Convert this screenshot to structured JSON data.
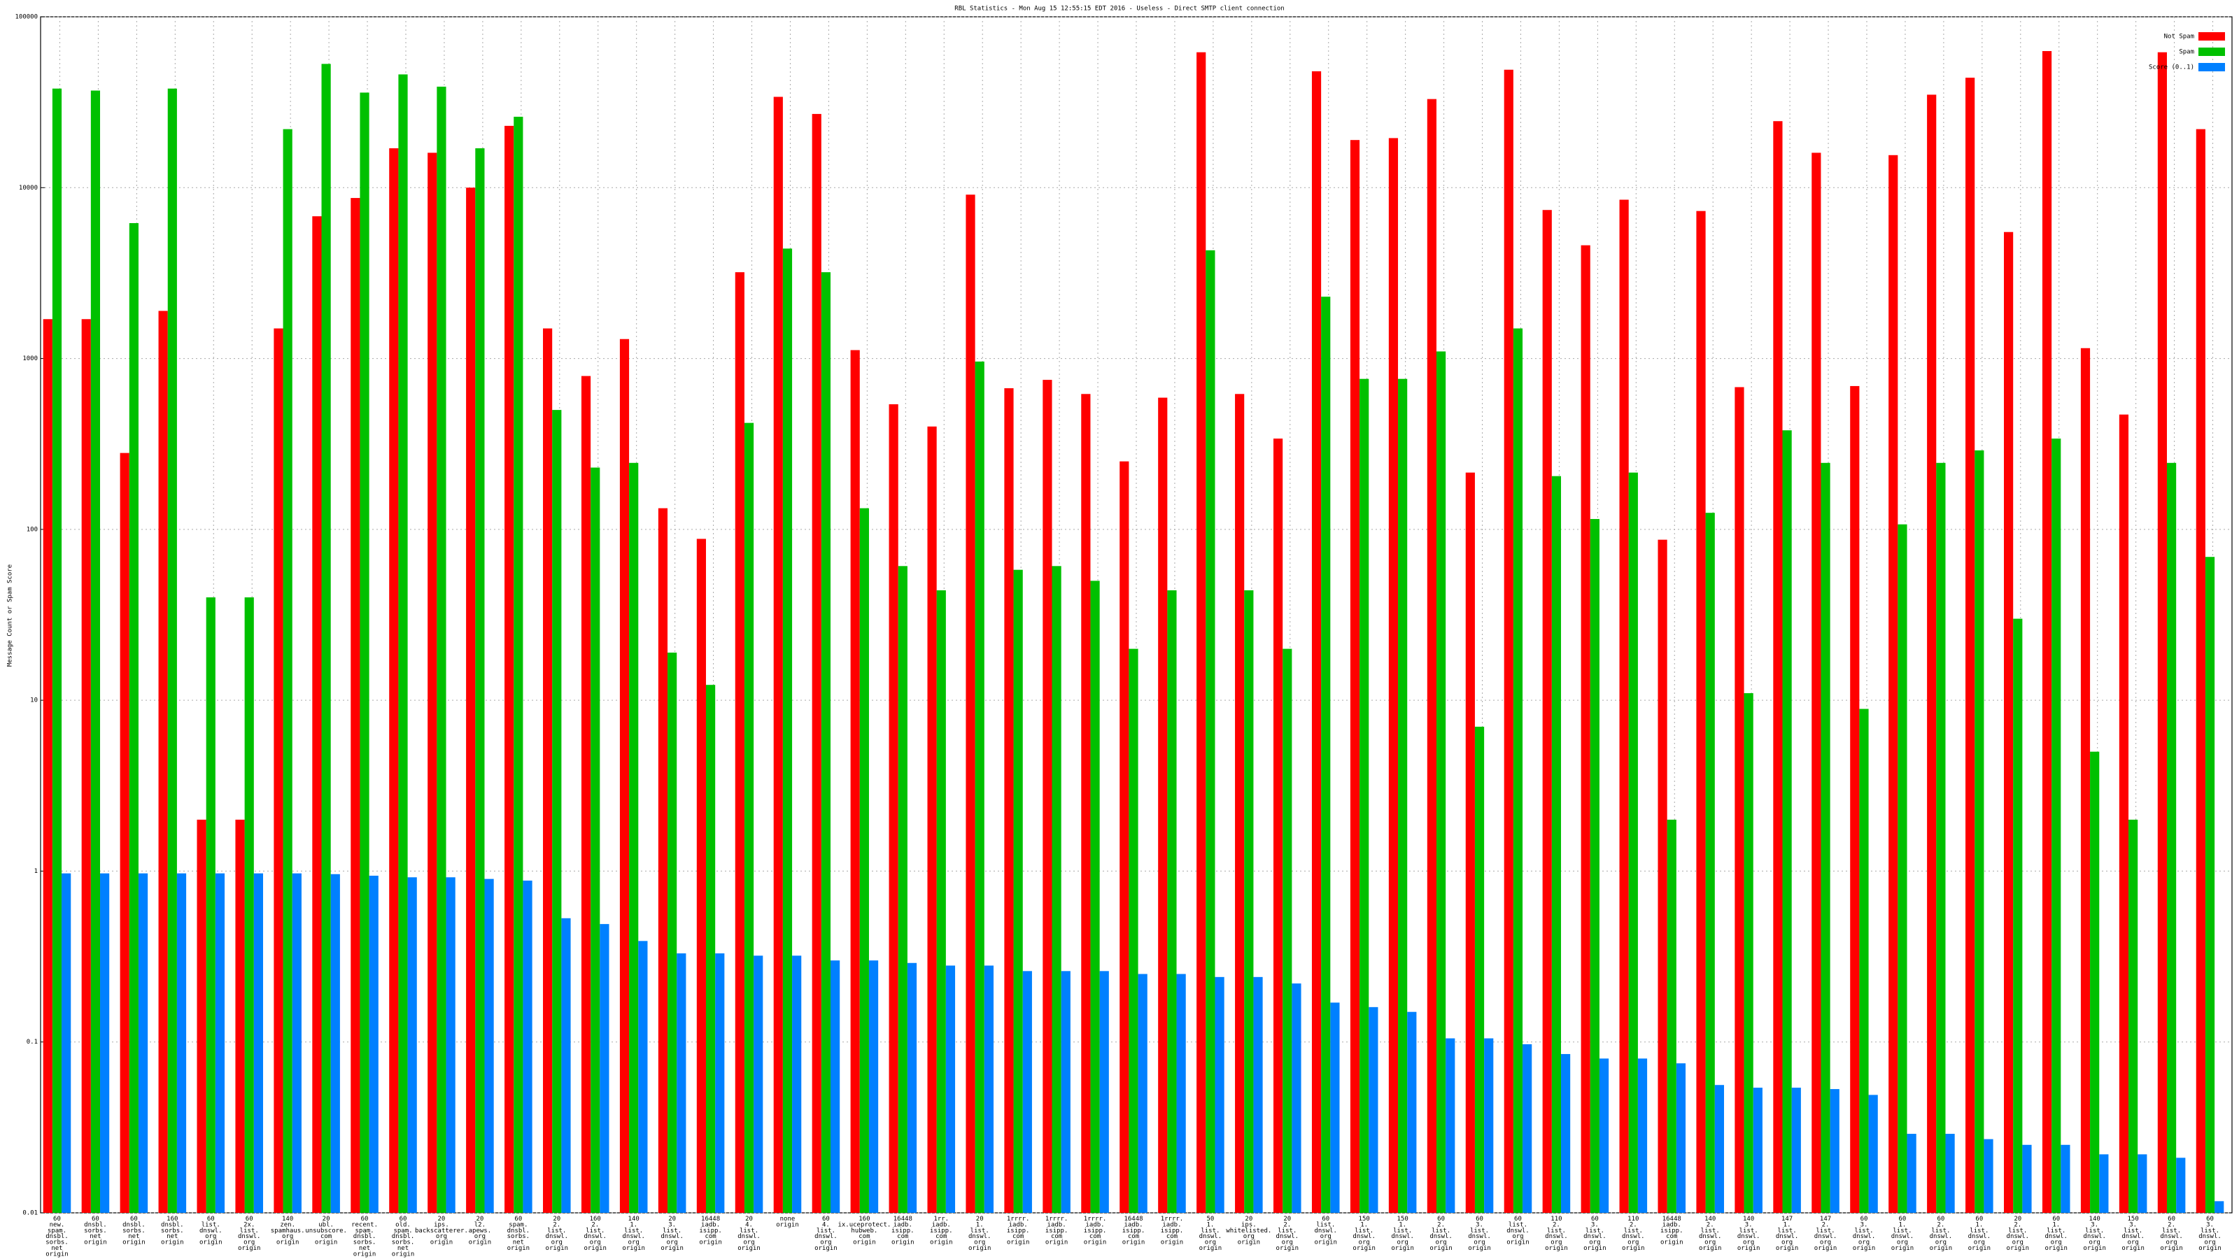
{
  "chart_data": {
    "type": "bar",
    "title": "RBL Statistics - Mon Aug 15 12:55:15 EDT 2016 - Useless - Direct SMTP client connection",
    "y_label": "Message Count or Spam Score",
    "log_y": true,
    "grid": true,
    "legend": "upper right",
    "ylim": [
      0.01,
      100000
    ],
    "yticks": [
      0.01,
      0.1,
      1,
      10,
      100,
      1000,
      10000,
      100000
    ],
    "categories": [
      "60\nnew.\nspam.\ndnsbl.\nsorbs.\nnet\norigin",
      "60\ndnsbl.\nsorbs.\nnet\norigin",
      "60\ndnsbl.\nsorbs.\nnet\norigin",
      "160\ndnsbl.\nsorbs.\nnet\norigin",
      "60\nlist.\ndnswl.\norg\norigin",
      "60\n2x.\nlist.\ndnswl.\norg\norigin",
      "140\nzen.\nspamhaus.\norg\norigin",
      "20\nubl.\nunsubscore.\ncom\norigin",
      "60\nrecent.\nspam.\ndnsbl.\nsorbs.\nnet\norigin",
      "60\nold.\nspam.\ndnsbl.\nsorbs.\nnet\norigin",
      "20\nips.\nbackscatterer.\norg\norigin",
      "20\nl2.\napews.\norg\norigin",
      "60\nspam.\ndnsbl.\nsorbs.\nnet\norigin",
      "20\n2.\nlist.\ndnswl.\norg\norigin",
      "160\n2.\nlist.\ndnswl.\norg\norigin",
      "140\n1.\nlist.\ndnswl.\norg\norigin",
      "20\n3.\nlist.\ndnswl.\norg\norigin",
      "16448\niadb.\nisipp.\ncom\norigin",
      "20\n4.\nlist.\ndnswl.\norg\norigin",
      "none\norigin",
      "60\n4.\nlist.\ndnswl.\norg\norigin",
      "160\nix.uceprotect.\nhubweb.\ncom\norigin",
      "16448\niadb.\nisipp.\ncom\norigin",
      "1rr.\niadb.\nisipp.\ncom\norigin",
      "20\n1.\nlist.\ndnswl.\norg\norigin",
      "1rrrr.\niadb.\nisipp.\ncom\norigin",
      "1rrrr.\niadb.\nisipp.\ncom\norigin",
      "1rrrr.\niadb.\nisipp.\ncom\norigin",
      "16448\niadb.\nisipp.\ncom\norigin",
      "1rrrr.\niadb.\nisipp.\ncom\norigin",
      "50\n1.\nlist.\ndnswl.\norg\norigin",
      "20\nips.\nwhitelisted.\norg\norigin",
      "20\n2.\nlist.\ndnswl.\norg\norigin",
      "60\nlist.\ndnswl.\norg\norigin",
      "150\n1.\nlist.\ndnswl.\norg\norigin",
      "150\n1.\nlist.\ndnswl.\norg\norigin",
      "60\n2.\nlist.\ndnswl.\norg\norigin",
      "60\n3.\nlist.\ndnswl.\norg\norigin",
      "60\nlist.\ndnswl.\norg\norigin",
      "110\n2.\nlist.\ndnswl.\norg\norigin",
      "60\n3.\nlist.\ndnswl.\norg\norigin",
      "110\n2.\nlist.\ndnswl.\norg\norigin",
      "16448\niadb.\nisipp.\ncom\norigin",
      "140\n2.\nlist.\ndnswl.\norg\norigin",
      "140\n3.\nlist.\ndnswl.\norg\norigin",
      "147\n1.\nlist.\ndnswl.\norg\norigin",
      "147\n2.\nlist.\ndnswl.\norg\norigin",
      "60\n3.\nlist.\ndnswl.\norg\norigin",
      "60\n1.\nlist.\ndnswl.\norg\norigin",
      "60\n2.\nlist.\ndnswl.\norg\norigin",
      "60\n1.\nlist.\ndnswl.\norg\norigin",
      "20\n2.\nlist.\ndnswl.\norg\norigin",
      "60\n1.\nlist.\ndnswl.\norg\norigin",
      "140\n3.\nlist.\ndnswl.\norg\norigin",
      "150\n3.\nlist.\ndnswl.\norg\norigin",
      "60\n2.\nlist.\ndnswl.\norg\norigin",
      "60\n3.\nlist.\ndnswl.\norg\norigin"
    ],
    "series": [
      {
        "name": "Not Spam",
        "color": "#ff0000",
        "values": [
          1700,
          1700,
          280,
          1900,
          2,
          2,
          1500,
          6800,
          8700,
          17000,
          16000,
          10000,
          23000,
          1500,
          790,
          1300,
          133,
          88,
          3200,
          34000,
          27000,
          1120,
          540,
          400,
          9100,
          670,
          750,
          620,
          250,
          590,
          62000,
          620,
          340,
          48000,
          19000,
          19500,
          33000,
          215,
          49000,
          7400,
          4600,
          8500,
          87,
          7300,
          680,
          24500,
          16000,
          690,
          15500,
          35000,
          44000,
          5500,
          63000,
          1150,
          470,
          62000,
          22000
        ]
      },
      {
        "name": "Spam",
        "color": "#00c000",
        "values": [
          38000,
          37000,
          6200,
          38000,
          40,
          40,
          22000,
          53000,
          36000,
          46000,
          39000,
          17000,
          26000,
          500,
          230,
          245,
          19,
          12.3,
          420,
          4400,
          3200,
          133,
          61,
          44,
          960,
          58,
          61,
          50,
          20,
          44,
          4300,
          44,
          20,
          2300,
          760,
          760,
          1100,
          7,
          1500,
          205,
          115,
          215,
          2,
          125,
          11,
          380,
          245,
          8.9,
          107,
          245,
          290,
          30,
          340,
          5,
          2,
          245,
          69
        ]
      },
      {
        "name": "Score (0..1)",
        "color": "#0080ff",
        "values": [
          0.97,
          0.97,
          0.97,
          0.97,
          0.97,
          0.97,
          0.97,
          0.96,
          0.94,
          0.92,
          0.92,
          0.9,
          0.88,
          0.53,
          0.49,
          0.39,
          0.33,
          0.33,
          0.32,
          0.32,
          0.3,
          0.3,
          0.29,
          0.28,
          0.28,
          0.26,
          0.26,
          0.26,
          0.25,
          0.25,
          0.24,
          0.24,
          0.22,
          0.17,
          0.16,
          0.15,
          0.105,
          0.105,
          0.097,
          0.085,
          0.08,
          0.08,
          0.075,
          0.056,
          0.054,
          0.054,
          0.053,
          0.049,
          0.029,
          0.029,
          0.027,
          0.025,
          0.025,
          0.022,
          0.022,
          0.021,
          0.0117
        ]
      }
    ]
  }
}
